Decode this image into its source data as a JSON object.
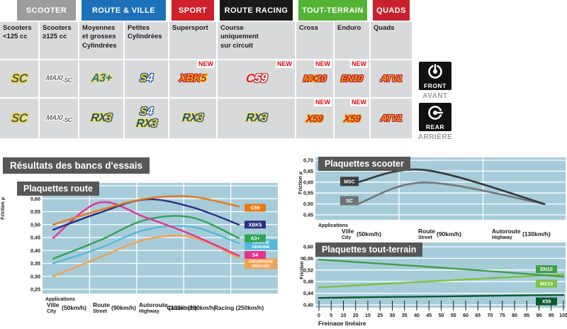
{
  "colors": {
    "plot_bg": "#A6CCDA",
    "grid": "#FFFFFF",
    "title_box": "#575756",
    "new": "#E30613",
    "cell_bg": "#D8D9DA",
    "text_dark": "#1A1A18"
  },
  "table": {
    "new_label": "NEW",
    "groups": [
      {
        "label": "SCOOTER",
        "color": "#9D9D9C",
        "span": 2
      },
      {
        "label": "ROUTE & VILLE",
        "color": "#1D71B8",
        "span": 2
      },
      {
        "label": "SPORT",
        "color": "#D0202A",
        "span": 1
      },
      {
        "label": "ROUTE RACING",
        "color": "#1A1A18",
        "span": 1
      },
      {
        "label": "TOUT-TERRAIN",
        "color": "#54B234",
        "span": 2
      },
      {
        "label": "QUADS",
        "color": "#C9202E",
        "span": 1
      }
    ],
    "subheaders": [
      "Scooters\n<125 cc",
      "Scooters\n≥125 cc",
      "Moyennes\net grosses\nCylindrées",
      "Petites\nCylindrées",
      "Supersport",
      "Course\nuniquement\nsur circuit",
      "Cross",
      "Enduro",
      "Quads"
    ],
    "rows": [
      {
        "side": "front",
        "new_cells": [
          4,
          5,
          6,
          7
        ],
        "cells": [
          [
            "SC"
          ],
          [
            "MAXI-SC"
          ],
          [
            "A3+"
          ],
          [
            "S4"
          ],
          [
            "XBK5"
          ],
          [
            "C59"
          ],
          [
            "MX10"
          ],
          [
            "EN10"
          ],
          [
            "ATV1"
          ]
        ]
      },
      {
        "side": "rear",
        "new_cells": [
          6,
          7
        ],
        "cells": [
          [
            "SC"
          ],
          [
            "MAXI-SC"
          ],
          [
            "RX3"
          ],
          [
            "S4",
            "RX3"
          ],
          [
            "RX3"
          ],
          [
            "RX3"
          ],
          [
            "X59"
          ],
          [
            "X59"
          ],
          [
            "ATV1"
          ]
        ]
      }
    ]
  },
  "badges": {
    "SC": {
      "fs": 17,
      "parts": [
        {
          "t": "SC",
          "fg": "#595A5C",
          "ol": "#F2DE30"
        }
      ]
    },
    "MAXI-SC": {
      "fs": 11,
      "parts": [
        {
          "t": "MAXI",
          "fg": "#6D6E70",
          "ol": "#FFFFFF",
          "fs": 10
        },
        {
          "t": "-SC",
          "fg": "#6D6E70",
          "ol": "#FFFFFF",
          "fs": 9,
          "dy": 3
        }
      ]
    },
    "A3+": {
      "fs": 16,
      "parts": [
        {
          "t": "A3+",
          "fg": "#1C6FB5",
          "ol": "#F2DE30"
        }
      ]
    },
    "S4": {
      "fs": 16,
      "parts": [
        {
          "t": "S",
          "fg": "#FFD816",
          "ol": "#1F4E96"
        },
        {
          "t": "4",
          "fg": "#FFFFFF",
          "ol": "#1F4E96"
        }
      ]
    },
    "XBK5": {
      "fs": 15,
      "parts": [
        {
          "t": "XBK",
          "fg": "#E0A50C",
          "ol": "#C41230"
        },
        {
          "t": "5",
          "fg": "#D2232A",
          "ol": "#F2DE30"
        }
      ]
    },
    "C59": {
      "fs": 17,
      "parts": [
        {
          "t": "C",
          "fg": "#D2232A",
          "ol": "#FFD9D9"
        },
        {
          "t": "59",
          "fg": "#FFFFFF",
          "ol": "#D2232A"
        }
      ]
    },
    "RX3": {
      "fs": 16,
      "parts": [
        {
          "t": "RX",
          "fg": "#1F4E96",
          "ol": "#F2DE30"
        },
        {
          "t": "3",
          "fg": "#FFD816",
          "ol": "#1F4E96"
        }
      ]
    },
    "MX10": {
      "fs": 13,
      "parts": [
        {
          "t": "M",
          "fg": "#E0A50C",
          "ol": "#C41230"
        },
        {
          "t": "X",
          "fg": "#D2232A",
          "ol": "#E0A50C"
        },
        {
          "t": "10",
          "fg": "#E0A50C",
          "ol": "#C41230"
        }
      ]
    },
    "EN10": {
      "fs": 13,
      "parts": [
        {
          "t": "EN10",
          "fg": "#E0A50C",
          "ol": "#C41230"
        }
      ]
    },
    "ATV1": {
      "fs": 13,
      "parts": [
        {
          "t": "ATV1",
          "fg": "#E0A50C",
          "ol": "#C41230"
        }
      ]
    },
    "X59": {
      "fs": 14,
      "parts": [
        {
          "t": "X59",
          "fg": "#D2232A",
          "ol": "#E0A50C"
        }
      ]
    }
  },
  "side": {
    "front": {
      "en": "FRONT",
      "fr": "AVANT"
    },
    "rear": {
      "en": "REAR",
      "fr": "ARRIÈRE"
    }
  },
  "section_title": "Résultats des bancs d'essais",
  "chart_data": [
    {
      "id": "route",
      "type": "line",
      "title": "Plaquettes route",
      "ylabel": "Friction µ",
      "x_caption": "Applications",
      "ylim": [
        0.25,
        0.65
      ],
      "yticks": [
        "0,65",
        "0,60",
        "0,55",
        "0,50",
        "0,45",
        "0,40",
        "0,35",
        "0,30",
        "0,25"
      ],
      "categories": [
        {
          "fr": "Ville",
          "en": "City",
          "speed": "(50km/h)"
        },
        {
          "fr": "Route",
          "en": "Street",
          "speed": "(90km/h)"
        },
        {
          "fr": "Autoroute",
          "en": "Highway",
          "speed": "(130km/h)"
        },
        {
          "single": "Circuit (180km/h)"
        },
        {
          "single": "Racing (250km/h)"
        }
      ],
      "series": [
        {
          "name": "ORGANIQUE",
          "label": "ORGANIQUE\nORGANIC",
          "color": "#F2A14F",
          "values": [
            0.3,
            0.372,
            0.442,
            0.452,
            0.372
          ]
        },
        {
          "name": "ORIGINE",
          "label": "ORIGINE\nGENUINE",
          "color": "#52BAD8",
          "values": [
            0.35,
            0.408,
            0.48,
            0.492,
            0.428
          ]
        },
        {
          "name": "A3+",
          "label": "A3+",
          "color": "#2FA452",
          "values": [
            0.368,
            0.438,
            0.518,
            0.528,
            0.448
          ]
        },
        {
          "name": "S4",
          "label": "S4",
          "color": "#E6328E",
          "values": [
            0.448,
            0.585,
            0.528,
            0.462,
            0.38
          ]
        },
        {
          "name": "XBK5",
          "label": "XBK5",
          "color": "#2D2E83",
          "values": [
            0.48,
            0.545,
            0.597,
            0.568,
            0.5
          ]
        },
        {
          "name": "C59",
          "label": "C59",
          "color": "#E87A16",
          "values": [
            0.5,
            0.555,
            0.6,
            0.608,
            0.57
          ]
        }
      ]
    },
    {
      "id": "scooter",
      "type": "line",
      "title": "Plaquettes scooter",
      "ylabel": "Friction µ",
      "x_caption": "Applications",
      "ylim": [
        0.45,
        0.7
      ],
      "yticks": [
        "0,70",
        "0,65",
        "0,60",
        "0,55",
        "0,50",
        "0,45"
      ],
      "categories": [
        {
          "fr": "Ville",
          "en": "City",
          "speed": "(50km/h)"
        },
        {
          "fr": "Route",
          "en": "Street",
          "speed": "(90km/h)"
        },
        {
          "fr": "Autoroute",
          "en": "Highway",
          "speed": "(130km/h)"
        }
      ],
      "series": [
        {
          "name": "SC",
          "label": "SC",
          "color": "#75797B",
          "box": "#6E7476",
          "values": [
            0.5,
            0.598,
            0.5
          ]
        },
        {
          "name": "MSC",
          "label": "MSC",
          "color": "#3A3A3C",
          "box": "#3E3E40",
          "values": [
            0.6,
            0.655,
            0.5
          ]
        }
      ]
    },
    {
      "id": "tt",
      "type": "line",
      "title": "Plaquettes tout-terrain",
      "ylabel": "Friction µ",
      "xlabel": "Freinage linéaire",
      "ylim": [
        0.4,
        0.6
      ],
      "yticks": [
        "0,60",
        "0,56",
        "0,52",
        "0,48",
        "0,44",
        "0,40"
      ],
      "xticks": [
        "0",
        "5",
        "10",
        "20",
        "15",
        "25",
        "30",
        "35",
        "40",
        "45",
        "50",
        "55",
        "60",
        "65",
        "70",
        "75",
        "80",
        "85",
        "90",
        "95",
        "100"
      ],
      "series": [
        {
          "name": "X59",
          "label": "X59",
          "color": "#0B5A2E",
          "values": [
            0.424,
            0.427,
            0.429,
            0.432,
            0.434
          ]
        },
        {
          "name": "MX10",
          "label": "MX10",
          "color": "#7DC242",
          "values": [
            0.46,
            0.472,
            0.483,
            0.494,
            0.505
          ]
        },
        {
          "name": "EN10",
          "label": "EN10",
          "color": "#3FA047",
          "values": [
            0.556,
            0.542,
            0.528,
            0.513,
            0.497
          ]
        }
      ]
    }
  ]
}
